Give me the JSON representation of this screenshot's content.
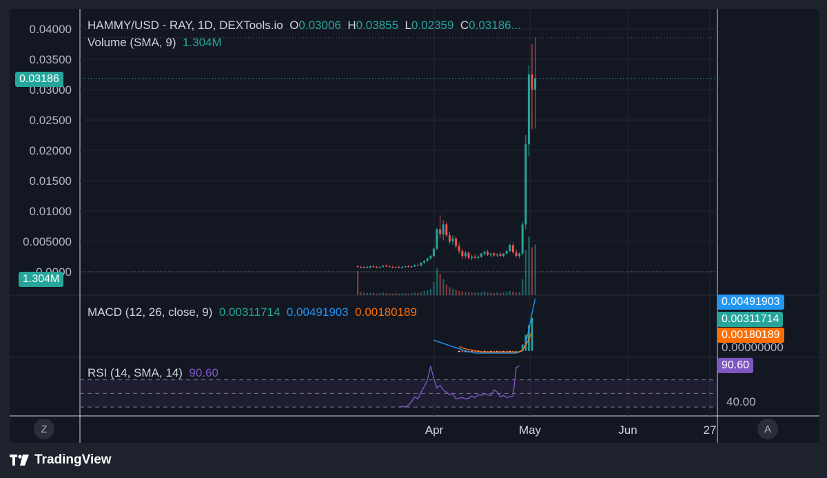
{
  "chart_data": [
    {
      "type": "candlestick",
      "title": "HAMMY/USD - RAY, 1D, DEXTools.io",
      "ohlc_legend": {
        "O": "0.03006",
        "H": "0.03855",
        "L": "0.02359",
        "C": "0.03186..."
      },
      "volume_legend": {
        "label": "Volume (SMA, 9)",
        "value": "1.304M"
      },
      "y_ticks": [
        "0.04000",
        "0.03500",
        "0.03000",
        "0.02500",
        "0.02000",
        "0.01500",
        "0.01000",
        "0.005000",
        "0.0000"
      ],
      "ylim": [
        0,
        0.04
      ],
      "x_ticks": [
        "Apr",
        "May",
        "Jun",
        "27"
      ],
      "last_price_label": "0.03186",
      "volume_label": "1.304M",
      "colors": {
        "up": "#26a69a",
        "down": "#ef5350",
        "grid": "#232733",
        "axis_text": "#b2b5be"
      },
      "candles": [
        {
          "o": 0.0009,
          "h": 0.0011,
          "l": 0.0007,
          "c": 0.0008
        },
        {
          "o": 0.0008,
          "h": 0.001,
          "l": 0.0006,
          "c": 0.0007
        },
        {
          "o": 0.0007,
          "h": 0.0009,
          "l": 0.0005,
          "c": 0.0008
        },
        {
          "o": 0.0008,
          "h": 0.001,
          "l": 0.0006,
          "c": 0.0007
        },
        {
          "o": 0.0007,
          "h": 0.001,
          "l": 0.0006,
          "c": 0.0009
        },
        {
          "o": 0.0009,
          "h": 0.0011,
          "l": 0.0007,
          "c": 0.0008
        },
        {
          "o": 0.0008,
          "h": 0.001,
          "l": 0.0006,
          "c": 0.0007
        },
        {
          "o": 0.0007,
          "h": 0.0009,
          "l": 0.0006,
          "c": 0.0008
        },
        {
          "o": 0.0008,
          "h": 0.0011,
          "l": 0.0007,
          "c": 0.001
        },
        {
          "o": 0.001,
          "h": 0.0012,
          "l": 0.0008,
          "c": 0.0009
        },
        {
          "o": 0.0009,
          "h": 0.0011,
          "l": 0.0007,
          "c": 0.0008
        },
        {
          "o": 0.0008,
          "h": 0.001,
          "l": 0.0006,
          "c": 0.0007
        },
        {
          "o": 0.0007,
          "h": 0.0009,
          "l": 0.0006,
          "c": 0.0008
        },
        {
          "o": 0.0008,
          "h": 0.001,
          "l": 0.0006,
          "c": 0.0007
        },
        {
          "o": 0.0007,
          "h": 0.0009,
          "l": 0.0005,
          "c": 0.0008
        },
        {
          "o": 0.0008,
          "h": 0.001,
          "l": 0.0007,
          "c": 0.0009
        },
        {
          "o": 0.0009,
          "h": 0.0011,
          "l": 0.0007,
          "c": 0.0008
        },
        {
          "o": 0.0008,
          "h": 0.001,
          "l": 0.0006,
          "c": 0.0009
        },
        {
          "o": 0.0009,
          "h": 0.0012,
          "l": 0.0008,
          "c": 0.0011
        },
        {
          "o": 0.0011,
          "h": 0.0014,
          "l": 0.0009,
          "c": 0.001
        },
        {
          "o": 0.001,
          "h": 0.0016,
          "l": 0.0009,
          "c": 0.0015
        },
        {
          "o": 0.0015,
          "h": 0.0019,
          "l": 0.0013,
          "c": 0.0018
        },
        {
          "o": 0.0018,
          "h": 0.0023,
          "l": 0.0016,
          "c": 0.0022
        },
        {
          "o": 0.0022,
          "h": 0.0028,
          "l": 0.002,
          "c": 0.0026
        },
        {
          "o": 0.0026,
          "h": 0.004,
          "l": 0.0024,
          "c": 0.0038
        },
        {
          "o": 0.0038,
          "h": 0.0072,
          "l": 0.0036,
          "c": 0.007
        },
        {
          "o": 0.007,
          "h": 0.0093,
          "l": 0.0055,
          "c": 0.0062
        },
        {
          "o": 0.0062,
          "h": 0.0085,
          "l": 0.0052,
          "c": 0.0078
        },
        {
          "o": 0.0078,
          "h": 0.0082,
          "l": 0.0058,
          "c": 0.006
        },
        {
          "o": 0.006,
          "h": 0.0066,
          "l": 0.0046,
          "c": 0.005
        },
        {
          "o": 0.005,
          "h": 0.006,
          "l": 0.0044,
          "c": 0.0055
        },
        {
          "o": 0.0055,
          "h": 0.0058,
          "l": 0.0038,
          "c": 0.0042
        },
        {
          "o": 0.0042,
          "h": 0.0048,
          "l": 0.003,
          "c": 0.0034
        },
        {
          "o": 0.0034,
          "h": 0.0038,
          "l": 0.0022,
          "c": 0.0026
        },
        {
          "o": 0.0026,
          "h": 0.0034,
          "l": 0.0022,
          "c": 0.0031
        },
        {
          "o": 0.0031,
          "h": 0.0034,
          "l": 0.002,
          "c": 0.0023
        },
        {
          "o": 0.0023,
          "h": 0.0028,
          "l": 0.0019,
          "c": 0.0025
        },
        {
          "o": 0.0025,
          "h": 0.0029,
          "l": 0.0021,
          "c": 0.0023
        },
        {
          "o": 0.0023,
          "h": 0.0027,
          "l": 0.002,
          "c": 0.0025
        },
        {
          "o": 0.0025,
          "h": 0.0031,
          "l": 0.0023,
          "c": 0.003
        },
        {
          "o": 0.003,
          "h": 0.0035,
          "l": 0.0027,
          "c": 0.0033
        },
        {
          "o": 0.0033,
          "h": 0.0036,
          "l": 0.0026,
          "c": 0.0028
        },
        {
          "o": 0.0028,
          "h": 0.0031,
          "l": 0.0024,
          "c": 0.003
        },
        {
          "o": 0.003,
          "h": 0.0033,
          "l": 0.0025,
          "c": 0.0027
        },
        {
          "o": 0.0027,
          "h": 0.003,
          "l": 0.0024,
          "c": 0.0029
        },
        {
          "o": 0.0029,
          "h": 0.0032,
          "l": 0.0025,
          "c": 0.0026
        },
        {
          "o": 0.0026,
          "h": 0.0031,
          "l": 0.0024,
          "c": 0.003
        },
        {
          "o": 0.003,
          "h": 0.0036,
          "l": 0.0028,
          "c": 0.0034
        },
        {
          "o": 0.0034,
          "h": 0.0046,
          "l": 0.0032,
          "c": 0.0044
        },
        {
          "o": 0.0044,
          "h": 0.0048,
          "l": 0.003,
          "c": 0.0032
        },
        {
          "o": 0.0032,
          "h": 0.0037,
          "l": 0.0024,
          "c": 0.0026
        },
        {
          "o": 0.0026,
          "h": 0.0032,
          "l": 0.0022,
          "c": 0.003
        },
        {
          "o": 0.003,
          "h": 0.0082,
          "l": 0.0028,
          "c": 0.0078
        },
        {
          "o": 0.0078,
          "h": 0.0225,
          "l": 0.007,
          "c": 0.021
        },
        {
          "o": 0.021,
          "h": 0.034,
          "l": 0.019,
          "c": 0.0325
        },
        {
          "o": 0.0325,
          "h": 0.0375,
          "l": 0.0235,
          "c": 0.03
        },
        {
          "o": 0.03,
          "h": 0.0386,
          "l": 0.0236,
          "c": 0.0319
        }
      ],
      "volume": [
        0.45,
        0.06,
        0.05,
        0.04,
        0.05,
        0.04,
        0.03,
        0.04,
        0.05,
        0.04,
        0.03,
        0.03,
        0.04,
        0.03,
        0.03,
        0.04,
        0.03,
        0.04,
        0.05,
        0.04,
        0.06,
        0.08,
        0.1,
        0.12,
        0.25,
        0.5,
        0.4,
        0.3,
        0.2,
        0.15,
        0.12,
        0.1,
        0.08,
        0.07,
        0.06,
        0.06,
        0.05,
        0.05,
        0.05,
        0.06,
        0.07,
        0.05,
        0.05,
        0.04,
        0.05,
        0.04,
        0.05,
        0.06,
        0.08,
        0.07,
        0.05,
        0.06,
        0.3,
        0.85,
        1.1,
        0.9,
        0.95
      ]
    },
    {
      "type": "line",
      "title": "MACD (12, 26, close, 9)",
      "values": [
        "0.00311714",
        "0.00491903",
        "0.00180189"
      ],
      "axis_labels": [
        "0.00491903",
        "0.00311714",
        "0.00180189",
        "0.00000000"
      ],
      "series": [
        {
          "name": "MACD",
          "color": "#2196f3",
          "start_index": 24,
          "values": [
            0.001,
            0.0009,
            0.0008,
            0.0007,
            0.0006,
            0.0005,
            0.0004,
            0.0003,
            0.0002,
            0.0001,
            0.0,
            -0.0001,
            -0.0001,
            -0.0002,
            -0.0002,
            -0.0002,
            -0.0002,
            -0.0002,
            -0.0002,
            -0.0002,
            -0.0002,
            -0.0002,
            -0.0002,
            -0.0002,
            -0.0002,
            -0.0002,
            -0.0002,
            -0.0001,
            0.0,
            0.0007,
            0.002,
            0.0035,
            0.0049
          ]
        },
        {
          "name": "Signal",
          "color": "#ff6d00",
          "start_index": 32,
          "values": [
            0.0004,
            0.0003,
            0.0002,
            0.0001,
            0.0001,
            0.0,
            0.0,
            -0.0001,
            -0.0001,
            -0.0001,
            -0.0001,
            -0.0001,
            -0.0001,
            -0.0001,
            -0.0001,
            -0.0001,
            -0.0001,
            -0.0001,
            -0.0001,
            -0.0001,
            0.0001,
            0.0005,
            0.0011,
            0.0018
          ]
        },
        {
          "name": "Histogram",
          "type": "bar",
          "start_index": 32,
          "values": [
            -0.0001,
            -0.0001,
            -0.0001,
            -0.0001,
            -0.0001,
            -0.0001,
            -0.0001,
            -0.0001,
            -0.0001,
            -0.0001,
            -0.0001,
            -0.0001,
            -0.0001,
            -0.0001,
            -0.0001,
            -0.0001,
            -0.0001,
            -0.0001,
            0.0,
            0.0,
            0.0006,
            0.0015,
            0.0024,
            0.0031
          ]
        }
      ]
    },
    {
      "type": "line",
      "title": "RSI (14, SMA, 14)",
      "value": "90.60",
      "axis_labels": [
        "90.60",
        "40.00"
      ],
      "bands": [
        70,
        50,
        30
      ],
      "series": [
        {
          "name": "RSI",
          "color": "#7e57c2",
          "start_index": 13,
          "values": [
            30,
            31,
            30,
            33,
            38,
            45,
            42,
            52,
            60,
            70,
            90,
            72,
            58,
            62,
            55,
            52,
            48,
            50,
            42,
            43,
            44,
            42,
            43,
            46,
            44,
            48,
            47,
            50,
            48,
            47,
            55,
            52,
            45,
            47,
            44,
            45,
            46,
            88,
            90.6
          ]
        }
      ]
    }
  ],
  "macd_legend": {
    "label": "MACD (12, 26, close, 9)",
    "v1": "0.00311714",
    "v2": "0.00491903",
    "v3": "0.00180189"
  },
  "rsi_legend": {
    "label": "RSI (14, SMA, 14)",
    "value": "90.60"
  },
  "buttons": {
    "left": "Z",
    "right": "A"
  },
  "brand": "TradingView"
}
